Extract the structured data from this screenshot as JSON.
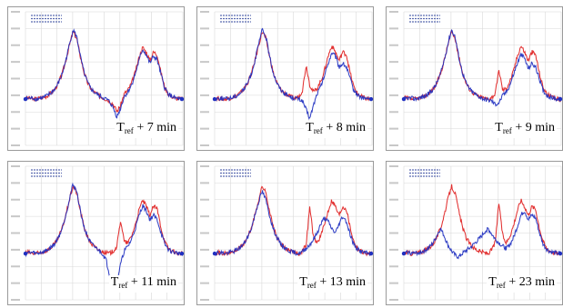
{
  "chart_data": [
    {
      "type": "line",
      "caption": {
        "base": "T",
        "sub": "ref",
        "rest": " + 7 min"
      },
      "grid": true,
      "series": [
        {
          "color": "#e02020",
          "values": [
            0.03,
            0.03,
            0.02,
            0.02,
            0.03,
            0.04,
            0.06,
            0.09,
            0.13,
            0.2,
            0.3,
            0.45,
            0.62,
            0.78,
            0.7,
            0.5,
            0.32,
            0.2,
            0.13,
            0.09,
            0.06,
            0.04,
            0.02,
            0.0,
            -0.04,
            -0.12,
            -0.05,
            0.08,
            0.12,
            0.2,
            0.32,
            0.48,
            0.6,
            0.55,
            0.45,
            0.55,
            0.52,
            0.32,
            0.16,
            0.08,
            0.05,
            0.03,
            0.02,
            0.02
          ]
        },
        {
          "color": "#2030c0",
          "values": [
            0.02,
            0.03,
            0.03,
            0.02,
            0.03,
            0.04,
            0.06,
            0.09,
            0.13,
            0.2,
            0.3,
            0.45,
            0.63,
            0.8,
            0.72,
            0.5,
            0.32,
            0.2,
            0.13,
            0.09,
            0.06,
            0.04,
            0.02,
            -0.01,
            -0.08,
            -0.18,
            -0.08,
            0.05,
            0.1,
            0.18,
            0.3,
            0.45,
            0.58,
            0.52,
            0.42,
            0.5,
            0.46,
            0.3,
            0.15,
            0.08,
            0.05,
            0.03,
            0.02,
            0.02
          ]
        }
      ]
    },
    {
      "type": "line",
      "caption": {
        "base": "T",
        "sub": "ref",
        "rest": " + 8 min"
      },
      "grid": true,
      "series": [
        {
          "color": "#e02020",
          "values": [
            0.03,
            0.03,
            0.02,
            0.02,
            0.03,
            0.04,
            0.06,
            0.09,
            0.13,
            0.2,
            0.3,
            0.45,
            0.62,
            0.78,
            0.7,
            0.5,
            0.32,
            0.2,
            0.13,
            0.09,
            0.06,
            0.04,
            0.03,
            0.05,
            0.12,
            0.4,
            0.18,
            0.1,
            0.14,
            0.22,
            0.34,
            0.5,
            0.62,
            0.55,
            0.45,
            0.55,
            0.52,
            0.32,
            0.16,
            0.08,
            0.05,
            0.03,
            0.02,
            0.02
          ]
        },
        {
          "color": "#2030c0",
          "values": [
            0.02,
            0.03,
            0.03,
            0.02,
            0.03,
            0.04,
            0.06,
            0.09,
            0.13,
            0.2,
            0.3,
            0.45,
            0.63,
            0.8,
            0.72,
            0.5,
            0.32,
            0.2,
            0.13,
            0.09,
            0.06,
            0.04,
            0.03,
            0.02,
            0.0,
            -0.1,
            -0.2,
            -0.05,
            0.08,
            0.16,
            0.28,
            0.42,
            0.54,
            0.5,
            0.38,
            0.42,
            0.38,
            0.25,
            0.12,
            0.07,
            0.04,
            0.03,
            0.02,
            0.02
          ]
        }
      ]
    },
    {
      "type": "line",
      "caption": {
        "base": "T",
        "sub": "ref",
        "rest": " + 9 min"
      },
      "grid": true,
      "series": [
        {
          "color": "#e02020",
          "values": [
            0.03,
            0.03,
            0.02,
            0.02,
            0.03,
            0.04,
            0.06,
            0.09,
            0.13,
            0.2,
            0.3,
            0.45,
            0.62,
            0.78,
            0.7,
            0.5,
            0.32,
            0.2,
            0.13,
            0.09,
            0.06,
            0.04,
            0.03,
            0.02,
            0.04,
            0.08,
            0.35,
            0.12,
            0.14,
            0.22,
            0.34,
            0.5,
            0.62,
            0.55,
            0.45,
            0.55,
            0.52,
            0.32,
            0.16,
            0.08,
            0.05,
            0.03,
            0.02,
            0.02
          ]
        },
        {
          "color": "#2030c0",
          "values": [
            0.02,
            0.03,
            0.03,
            0.02,
            0.03,
            0.04,
            0.06,
            0.09,
            0.13,
            0.2,
            0.3,
            0.45,
            0.63,
            0.8,
            0.72,
            0.5,
            0.32,
            0.2,
            0.13,
            0.09,
            0.06,
            0.04,
            0.02,
            0.01,
            0.0,
            -0.04,
            -0.02,
            0.06,
            0.1,
            0.18,
            0.3,
            0.42,
            0.52,
            0.48,
            0.36,
            0.42,
            0.38,
            0.25,
            0.12,
            0.07,
            0.04,
            0.03,
            0.02,
            0.02
          ]
        }
      ]
    },
    {
      "type": "line",
      "caption": {
        "base": "T",
        "sub": "ref",
        "rest": " + 11 min"
      },
      "grid": true,
      "series": [
        {
          "color": "#e02020",
          "values": [
            0.03,
            0.03,
            0.02,
            0.02,
            0.03,
            0.04,
            0.06,
            0.09,
            0.13,
            0.2,
            0.3,
            0.45,
            0.62,
            0.78,
            0.7,
            0.5,
            0.32,
            0.2,
            0.13,
            0.09,
            0.06,
            0.04,
            0.03,
            0.02,
            0.05,
            0.1,
            0.4,
            0.15,
            0.14,
            0.22,
            0.34,
            0.5,
            0.62,
            0.55,
            0.45,
            0.55,
            0.52,
            0.32,
            0.16,
            0.08,
            0.05,
            0.03,
            0.02,
            0.02
          ]
        },
        {
          "color": "#2030c0",
          "values": [
            0.02,
            0.03,
            0.03,
            0.02,
            0.03,
            0.04,
            0.06,
            0.09,
            0.13,
            0.2,
            0.3,
            0.45,
            0.63,
            0.8,
            0.72,
            0.5,
            0.32,
            0.2,
            0.13,
            0.09,
            0.06,
            0.02,
            -0.05,
            -0.22,
            -0.4,
            -0.3,
            -0.1,
            0.05,
            0.1,
            0.18,
            0.3,
            0.44,
            0.56,
            0.5,
            0.4,
            0.45,
            0.4,
            0.26,
            0.13,
            0.07,
            0.04,
            0.03,
            0.02,
            0.02
          ]
        }
      ]
    },
    {
      "type": "line",
      "caption": {
        "base": "T",
        "sub": "ref",
        "rest": " + 13 min"
      },
      "grid": true,
      "series": [
        {
          "color": "#e02020",
          "values": [
            0.03,
            0.03,
            0.02,
            0.02,
            0.03,
            0.04,
            0.06,
            0.09,
            0.13,
            0.2,
            0.3,
            0.45,
            0.62,
            0.78,
            0.7,
            0.5,
            0.32,
            0.2,
            0.13,
            0.09,
            0.06,
            0.04,
            0.03,
            0.02,
            0.05,
            0.12,
            0.55,
            0.2,
            0.14,
            0.22,
            0.34,
            0.5,
            0.62,
            0.55,
            0.45,
            0.55,
            0.52,
            0.32,
            0.16,
            0.08,
            0.05,
            0.03,
            0.02,
            0.02
          ]
        },
        {
          "color": "#2030c0",
          "values": [
            0.02,
            0.03,
            0.03,
            0.02,
            0.03,
            0.04,
            0.06,
            0.09,
            0.13,
            0.2,
            0.3,
            0.45,
            0.6,
            0.72,
            0.62,
            0.45,
            0.3,
            0.2,
            0.13,
            0.09,
            0.06,
            0.04,
            0.03,
            0.02,
            0.04,
            0.08,
            0.12,
            0.18,
            0.25,
            0.35,
            0.42,
            0.38,
            0.3,
            0.25,
            0.35,
            0.44,
            0.38,
            0.24,
            0.12,
            0.07,
            0.04,
            0.03,
            0.02,
            0.02
          ]
        }
      ]
    },
    {
      "type": "line",
      "caption": {
        "base": "T",
        "sub": "ref",
        "rest": " + 23 min"
      },
      "grid": true,
      "series": [
        {
          "color": "#e02020",
          "values": [
            0.03,
            0.03,
            0.02,
            0.02,
            0.03,
            0.04,
            0.06,
            0.09,
            0.13,
            0.2,
            0.3,
            0.45,
            0.62,
            0.78,
            0.7,
            0.5,
            0.32,
            0.2,
            0.13,
            0.09,
            0.06,
            0.04,
            0.03,
            0.02,
            0.06,
            0.15,
            0.6,
            0.22,
            0.14,
            0.22,
            0.34,
            0.5,
            0.62,
            0.55,
            0.45,
            0.55,
            0.52,
            0.32,
            0.16,
            0.08,
            0.05,
            0.03,
            0.02,
            0.02
          ]
        },
        {
          "color": "#2030c0",
          "values": [
            0.02,
            0.03,
            0.03,
            0.02,
            0.03,
            0.04,
            0.06,
            0.09,
            0.14,
            0.22,
            0.3,
            0.22,
            0.12,
            0.05,
            0.0,
            -0.02,
            0.02,
            0.05,
            0.08,
            0.12,
            0.16,
            0.2,
            0.26,
            0.3,
            0.24,
            0.18,
            0.14,
            0.1,
            0.08,
            0.12,
            0.2,
            0.32,
            0.45,
            0.5,
            0.4,
            0.45,
            0.42,
            0.26,
            0.13,
            0.07,
            0.04,
            0.03,
            0.02,
            0.02
          ]
        }
      ]
    }
  ]
}
